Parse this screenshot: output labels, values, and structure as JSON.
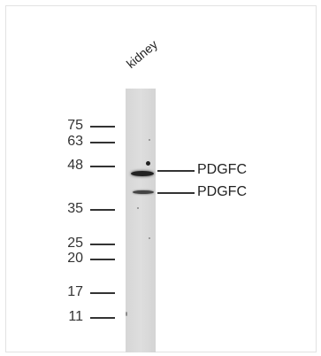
{
  "blot": {
    "lane_label": "kidney",
    "markers": [
      {
        "label": "75"
      },
      {
        "label": "63"
      },
      {
        "label": "48"
      },
      {
        "label": "35"
      },
      {
        "label": "25"
      },
      {
        "label": "20"
      },
      {
        "label": "17"
      },
      {
        "label": "11"
      }
    ],
    "callouts": [
      {
        "label": "PDGFC"
      },
      {
        "label": "PDGFC"
      }
    ]
  }
}
